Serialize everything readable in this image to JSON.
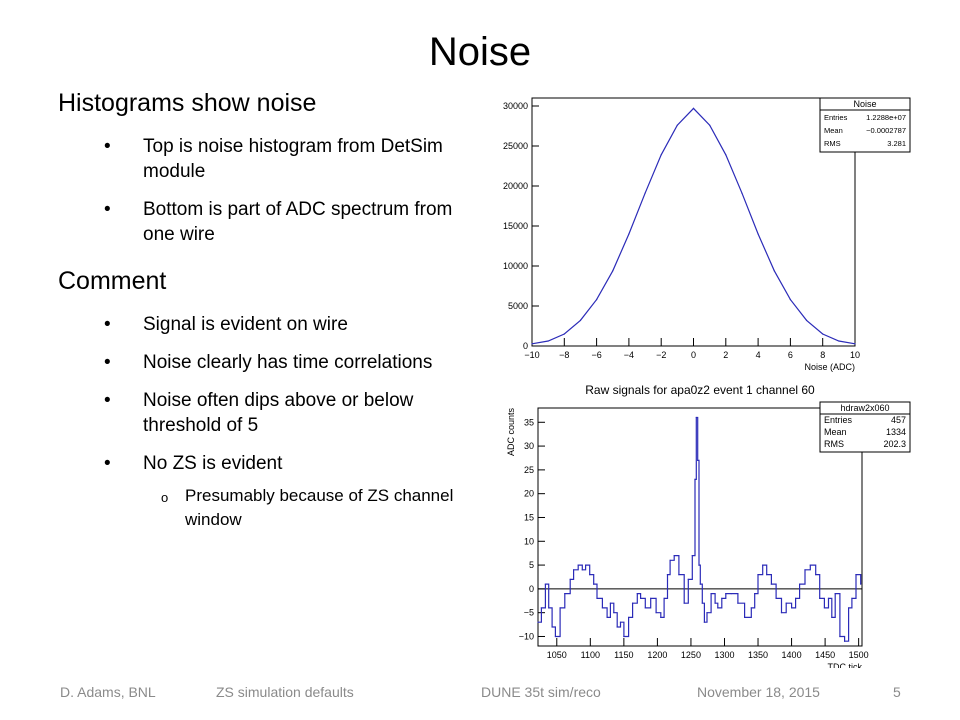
{
  "title": "Noise",
  "left": {
    "section1": "Histograms show noise",
    "bullets1": [
      "Top is noise histogram from DetSim module",
      "Bottom is part of ADC spectrum from one wire"
    ],
    "section2": "Comment",
    "bullets2": [
      "Signal is evident on wire",
      "Noise clearly has time correlations",
      "Noise often dips above or below threshold of 5",
      "No ZS is evident"
    ],
    "subbullet": "Presumably because of ZS channel window",
    "bullet_glyph": "•",
    "sub_glyph": "o"
  },
  "footer": {
    "author": "D. Adams, BNL",
    "topic": "ZS simulation defaults",
    "meeting": "DUNE 35t sim/reco",
    "date": "November 18, 2015",
    "page": "5"
  },
  "colors": {
    "line": "#2b2bb8",
    "frame": "#000000",
    "footer_text": "#8a8a8a"
  },
  "chart_data": [
    {
      "type": "line",
      "title": "",
      "xlabel": "Noise (ADC)",
      "ylabel": "",
      "xlim": [
        -10,
        10
      ],
      "ylim": [
        0,
        31000
      ],
      "x_ticks": [
        -10,
        -8,
        -6,
        -4,
        -2,
        0,
        2,
        4,
        6,
        8,
        10
      ],
      "y_ticks": [
        0,
        5000,
        10000,
        15000,
        20000,
        25000,
        30000
      ],
      "series": [
        {
          "x": [
            -10,
            -9,
            -8,
            -7,
            -6,
            -5,
            -4,
            -3,
            -2,
            -1,
            0,
            1,
            2,
            3,
            4,
            5,
            6,
            7,
            8,
            9,
            10
          ],
          "values": [
            280,
            620,
            1500,
            3200,
            5800,
            9400,
            14000,
            19100,
            23900,
            27600,
            29700,
            27600,
            23900,
            19100,
            14000,
            9400,
            5800,
            3200,
            1500,
            620,
            280
          ]
        }
      ],
      "stats": {
        "name": "Noise",
        "rows": [
          [
            "Entries",
            "1.2288e+07"
          ],
          [
            "Mean",
            "−0.0002787"
          ],
          [
            "RMS",
            "3.281"
          ]
        ]
      }
    },
    {
      "type": "line",
      "title": "Raw signals for apa0z2 event 1 channel 60",
      "xlabel": "TDC tick",
      "ylabel": "ADC counts",
      "xlim": [
        1022,
        1505
      ],
      "ylim": [
        -12,
        38
      ],
      "x_ticks": [
        1050,
        1100,
        1150,
        1200,
        1250,
        1300,
        1350,
        1400,
        1450,
        1500
      ],
      "y_ticks": [
        -10,
        -5,
        0,
        5,
        10,
        15,
        20,
        25,
        30,
        35
      ],
      "threshold": 0,
      "series": [
        {
          "x": [
            1022,
            1027,
            1033,
            1038,
            1043,
            1048,
            1055,
            1062,
            1070,
            1075,
            1082,
            1088,
            1093,
            1099,
            1105,
            1110,
            1118,
            1125,
            1130,
            1135,
            1140,
            1145,
            1150,
            1157,
            1163,
            1170,
            1175,
            1182,
            1190,
            1198,
            1205,
            1210,
            1215,
            1219,
            1225,
            1232,
            1240,
            1246,
            1252,
            1256,
            1258,
            1260,
            1262,
            1264,
            1267,
            1270,
            1274,
            1280,
            1286,
            1290,
            1296,
            1302,
            1310,
            1320,
            1330,
            1340,
            1345,
            1350,
            1357,
            1363,
            1370,
            1377,
            1385,
            1392,
            1400,
            1406,
            1412,
            1420,
            1428,
            1436,
            1442,
            1449,
            1455,
            1460,
            1465,
            1472,
            1479,
            1485,
            1490,
            1496,
            1503
          ],
          "values": [
            -7,
            -4,
            1,
            -4,
            -8,
            -10,
            -4,
            -1,
            2,
            4,
            5,
            4,
            5,
            3,
            1,
            -2,
            -4,
            -6,
            -3,
            -5,
            -8,
            -7,
            -10,
            -6,
            -3,
            -1,
            -2,
            -4,
            -2,
            -5,
            -6,
            -2,
            3,
            6,
            7,
            3,
            -3,
            2,
            7,
            23,
            36,
            27,
            5,
            1,
            -3,
            -7,
            -5,
            -1,
            -3,
            -4,
            -2,
            -1,
            -1,
            -3,
            -6,
            -4,
            -1,
            3,
            5,
            3,
            1,
            -2,
            -5,
            -3,
            -4,
            -2,
            1,
            4,
            5,
            3,
            -2,
            -4,
            -2,
            -6,
            -1,
            -10,
            -11,
            -4,
            -2,
            3,
            1
          ]
        }
      ],
      "stats": {
        "name": "hdraw2x060",
        "rows": [
          [
            "Entries",
            "457"
          ],
          [
            "Mean",
            "1334"
          ],
          [
            "RMS",
            "202.3"
          ]
        ]
      }
    }
  ]
}
